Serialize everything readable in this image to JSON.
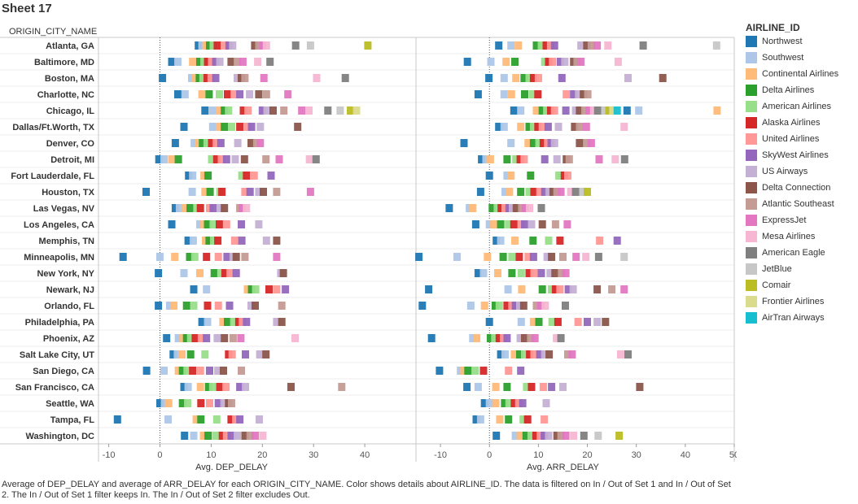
{
  "sheet_title": "Sheet 17",
  "caption": "Average of DEP_DELAY and average of ARR_DELAY for each ORIGIN_CITY_NAME.  Color shows details about AIRLINE_ID. The data is filtered on In / Out of Set 1 and In / Out of Set 2. The In / Out of Set 1 filter keeps In. The In / Out of Set 2 filter excludes Out.",
  "legend": {
    "title": "AIRLINE_ID",
    "items": [
      {
        "name": "Northwest",
        "color": "#1f77b4"
      },
      {
        "name": "Southwest",
        "color": "#aec7e8"
      },
      {
        "name": "Continental Airlines",
        "color": "#ffbb78"
      },
      {
        "name": "Delta Airlines",
        "color": "#2ca02c"
      },
      {
        "name": "American Airlines",
        "color": "#98df8a"
      },
      {
        "name": "Alaska Airlines",
        "color": "#d62728"
      },
      {
        "name": "United Airlines",
        "color": "#ff9896"
      },
      {
        "name": "SkyWest Airlines",
        "color": "#9467bd"
      },
      {
        "name": "US Airways",
        "color": "#c5b0d5"
      },
      {
        "name": "Delta Connection",
        "color": "#8c564b"
      },
      {
        "name": "Atlantic Southeast",
        "color": "#c49c94"
      },
      {
        "name": "ExpressJet",
        "color": "#e377c2"
      },
      {
        "name": "Mesa Airlines",
        "color": "#f7b6d2"
      },
      {
        "name": "American Eagle",
        "color": "#7f7f7f"
      },
      {
        "name": "JetBlue",
        "color": "#c7c7c7"
      },
      {
        "name": "Comair",
        "color": "#bcbd22"
      },
      {
        "name": "Frontier Airlines",
        "color": "#dbdb8d"
      },
      {
        "name": "AirTran Airways",
        "color": "#17becf"
      }
    ]
  },
  "chart_data": {
    "type": "scatter",
    "row_header": "ORIGIN_CITY_NAME",
    "rows": [
      "Atlanta, GA",
      "Baltimore, MD",
      "Boston, MA",
      "Charlotte, NC",
      "Chicago, IL",
      "Dallas/Ft.Worth, TX",
      "Denver, CO",
      "Detroit, MI",
      "Fort Lauderdale, FL",
      "Houston, TX",
      "Las Vegas, NV",
      "Los Angeles, CA",
      "Memphis, TN",
      "Minneapolis, MN",
      "New York, NY",
      "Newark, NJ",
      "Orlando, FL",
      "Philadelphia, PA",
      "Phoenix, AZ",
      "Salt Lake City, UT",
      "San Diego, CA",
      "San Francisco, CA",
      "Seattle, WA",
      "Tampa, FL",
      "Washington, DC"
    ],
    "panels": [
      {
        "xlabel": "Avg. DEP_DELAY",
        "xlim": [
          -12,
          50
        ],
        "ticks": [
          -10,
          0,
          10,
          20,
          30,
          40
        ],
        "tick_labels": [
          "-10",
          "0",
          "10",
          "20",
          "30",
          "40"
        ],
        "values": [
          [
            7.5,
            8.2,
            9.0,
            9.7,
            10.4,
            11.2,
            12.7,
            13.5,
            14.2,
            18.5,
            19.3,
            20.1,
            20.8,
            26.5,
            29.4,
            40.6
          ],
          [
            2.3,
            3.5,
            6.4,
            7.8,
            8.6,
            9.3,
            10.1,
            10.9,
            11.7,
            13.9,
            15.1,
            16.2,
            19.1,
            21.5
          ],
          [
            0.5,
            6.2,
            6.9,
            7.7,
            8.4,
            9.2,
            10.0,
            10.9,
            15.1,
            15.9,
            16.6,
            20.3,
            30.6,
            36.2
          ],
          [
            3.5,
            4.9,
            8.2,
            9.6,
            11.6,
            13.2,
            14.5,
            15.6,
            17.5,
            19.3,
            20.8,
            25.0
          ],
          [
            8.8,
            10.3,
            11.6,
            12.6,
            13.4,
            16.3,
            17.2,
            20.0,
            20.9,
            22.1,
            24.2,
            27.7,
            29.1,
            32.8,
            35.2,
            37.2,
            38.4
          ],
          [
            4.7,
            10.3,
            11.7,
            12.6,
            14.0,
            15.6,
            17.1,
            17.9,
            19.6,
            26.9
          ],
          [
            3.0,
            6.7,
            7.5,
            8.3,
            9.2,
            10.1,
            11.0,
            11.9,
            15.2,
            17.8,
            18.9,
            19.6
          ],
          [
            -0.2,
            0.8,
            2.3,
            3.6,
            10.1,
            11.1,
            12.0,
            13.0,
            14.7,
            16.5,
            20.7,
            23.3,
            29.2,
            30.5
          ],
          [
            5.6,
            6.4,
            8.6,
            9.4,
            16.0,
            16.9,
            18.4,
            21.7
          ],
          [
            -2.7,
            6.3,
            8.8,
            9.8,
            11.7,
            12.1,
            16.6,
            17.6,
            19.3,
            20.2,
            22.8,
            29.4
          ],
          [
            3.0,
            3.8,
            4.9,
            5.9,
            7.2,
            7.9,
            9.7,
            10.4,
            11.9,
            12.6,
            15.6,
            16.1,
            16.9
          ],
          [
            2.3,
            7.8,
            8.6,
            9.3,
            10.4,
            11.6,
            13.0,
            15.9,
            19.3
          ],
          [
            5.5,
            6.5,
            8.9,
            9.6,
            10.5,
            11.3,
            14.6,
            16.0,
            20.8,
            22.8
          ],
          [
            -7.2,
            0.0,
            2.9,
            5.8,
            6.8,
            9.1,
            11.4,
            13.1,
            14.3,
            14.9,
            16.6,
            22.8
          ],
          [
            -0.3,
            4.7,
            7.8,
            10.6,
            11.9,
            12.7,
            13.7,
            14.9,
            23.6,
            24.1
          ],
          [
            6.6,
            9.1,
            17.1,
            17.9,
            18.7,
            21.3,
            22.8,
            24.5
          ],
          [
            -0.3,
            1.9,
            2.7,
            5.2,
            6.6,
            9.3,
            11.4,
            13.6,
            17.8,
            18.6,
            23.8
          ],
          [
            8.2,
            9.3,
            12.3,
            13.2,
            14.4,
            15.4,
            16.1,
            16.9,
            22.8,
            23.8
          ],
          [
            1.3,
            3.6,
            4.5,
            5.2,
            6.0,
            6.9,
            8.1,
            9.1,
            11.2,
            12.6,
            14.3,
            15.8,
            26.4
          ],
          [
            2.6,
            3.4,
            4.3,
            6.0,
            8.8,
            13.4,
            14.1,
            16.7,
            19.5,
            20.7
          ],
          [
            -2.6,
            0.8,
            3.6,
            4.4,
            5.3,
            6.4,
            7.9,
            9.7,
            11.3,
            12.4,
            15.9
          ],
          [
            4.7,
            5.5,
            7.9,
            9.5,
            10.3,
            11.7,
            12.9,
            15.6,
            16.7,
            25.6,
            35.5
          ],
          [
            0.0,
            0.9,
            1.7,
            4.4,
            5.4,
            8.0,
            9.7,
            11.4,
            12.5,
            13.4,
            14.0
          ],
          [
            -8.3,
            1.6,
            7.1,
            8.0,
            11.1,
            13.9,
            14.8,
            15.6,
            19.4
          ],
          [
            4.8,
            6.6,
            8.5,
            9.4,
            10.9,
            12.2,
            13.0,
            13.9,
            15.1,
            16.6,
            17.6,
            18.6,
            20.1
          ]
        ]
      },
      {
        "xlabel": "Avg. ARR_DELAY",
        "xlim": [
          -15,
          50
        ],
        "ticks": [
          -10,
          0,
          10,
          20,
          30,
          40,
          50
        ],
        "tick_labels": [
          "-10",
          "0",
          "10",
          "20",
          "30",
          "40",
          "50"
        ],
        "values": [
          [
            1.9,
            4.4,
            5.9,
            9.6,
            10.6,
            11.6,
            12.5,
            13.3,
            18.7,
            19.9,
            20.8,
            22.0,
            24.2,
            31.4,
            46.4
          ],
          [
            -4.5,
            0.3,
            3.4,
            5.2,
            11.3,
            12.1,
            12.9,
            14.5,
            15.4,
            17.2,
            17.9,
            18.7,
            26.3
          ],
          [
            -0.1,
            3.0,
            5.4,
            7.1,
            8.1,
            9.0,
            10.0,
            14.8,
            28.3,
            35.4
          ],
          [
            -2.3,
            3.0,
            4.5,
            7.2,
            8.8,
            9.9,
            15.7,
            17.2,
            18.2,
            19.2,
            20.1
          ],
          [
            5.0,
            6.4,
            9.6,
            10.8,
            11.7,
            12.5,
            13.3,
            15.6,
            17.6,
            18.4,
            19.5,
            20.4,
            21.3,
            22.1,
            23.6,
            24.4,
            25.2,
            26.1,
            28.1,
            30.5,
            46.5
          ],
          [
            1.9,
            3.0,
            6.4,
            8.1,
            9.0,
            9.9,
            10.8,
            12.0,
            14.1,
            17.4,
            18.4,
            19.8,
            27.5
          ],
          [
            -5.2,
            4.4,
            7.9,
            9.0,
            10.1,
            11.0,
            11.9,
            12.6,
            13.3,
            18.4,
            19.9,
            20.8
          ],
          [
            -1.6,
            -0.7,
            0.2,
            3.6,
            5.4,
            6.3,
            7.1,
            11.3,
            13.8,
            15.7,
            16.3,
            22.4,
            25.7,
            27.6
          ],
          [
            0.0,
            3.6,
            4.4,
            8.4,
            14.2,
            15.3,
            16.0
          ],
          [
            -1.8,
            3.2,
            4.1,
            6.4,
            8.1,
            9.1,
            10.3,
            11.3,
            12.2,
            13.0,
            13.8,
            14.6,
            16.6,
            17.6,
            19.1,
            20.0
          ],
          [
            -8.2,
            -4.1,
            -3.4,
            0.6,
            1.6,
            2.4,
            3.2,
            4.0,
            4.7,
            5.5,
            6.6,
            7.3,
            8.2,
            10.6
          ],
          [
            -2.8,
            0.0,
            0.9,
            2.3,
            3.9,
            5.0,
            6.5,
            7.2,
            8.6,
            10.8,
            13.5,
            15.9
          ],
          [
            1.4,
            2.3,
            5.2,
            8.9,
            12.1,
            14.4,
            22.5,
            26.1
          ],
          [
            -14.4,
            -6.6,
            -0.4,
            2.8,
            4.6,
            6.1,
            7.9,
            9.0,
            11.8,
            12.7,
            15.0,
            17.7,
            19.7,
            22.3,
            27.5
          ],
          [
            -2.3,
            -1.2,
            1.7,
            4.6,
            6.5,
            8.1,
            9.1,
            10.6,
            12.4,
            13.4,
            14.7,
            15.6
          ],
          [
            -12.4,
            3.8,
            6.6,
            10.8,
            12.7,
            13.5,
            14.4,
            16.1,
            17.1,
            22.0,
            25.0,
            27.5
          ],
          [
            -13.7,
            -3.8,
            -1.0,
            1.2,
            2.0,
            3.6,
            4.6,
            5.3,
            6.2,
            7.0,
            9.6,
            10.5,
            11.4,
            15.5
          ],
          [
            0.0,
            6.5,
            9.0,
            10.1,
            12.8,
            14.0,
            18.1,
            20.0,
            22.0,
            23.7
          ],
          [
            -11.8,
            -3.4,
            -2.6,
            0.2,
            1.1,
            2.0,
            2.9,
            3.6,
            6.3,
            7.2,
            8.4,
            9.3,
            13.7,
            14.6
          ],
          [
            2.3,
            3.2,
            5.1,
            6.2,
            7.2,
            8.2,
            9.1,
            10.3,
            11.3,
            12.2,
            16.0,
            16.9,
            26.8,
            28.3
          ],
          [
            -10.2,
            -5.9,
            -5.3,
            -4.4,
            -2.9,
            -1.2,
            3.9,
            6.4
          ],
          [
            -4.6,
            -2.3,
            1.3,
            3.6,
            7.6,
            8.6,
            11.0,
            12.7,
            15.0,
            30.7
          ],
          [
            -1.0,
            0.0,
            1.3,
            3.1,
            4.0,
            5.1,
            6.0,
            6.8,
            11.6
          ],
          [
            -2.7,
            -1.8,
            2.1,
            3.9,
            6.9,
            7.8,
            11.2
          ],
          [
            1.4,
            5.3,
            6.3,
            7.5,
            8.5,
            9.5,
            10.4,
            11.2,
            12.1,
            13.8,
            14.6,
            15.6,
            17.2,
            19.3,
            22.2,
            26.5
          ]
        ]
      }
    ]
  }
}
